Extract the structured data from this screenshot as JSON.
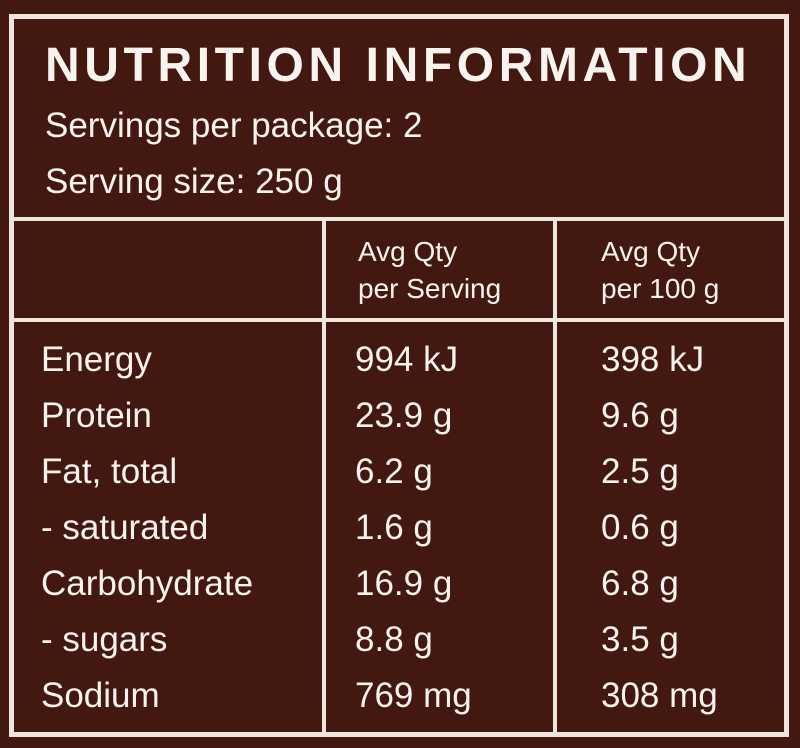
{
  "label": {
    "title": "NUTRITION INFORMATION",
    "servings_per_package": "Servings per package: 2",
    "serving_size": "Serving size: 250 g"
  },
  "columns": {
    "per_serving": {
      "line1": "Avg Qty",
      "line2": "per Serving"
    },
    "per_100g": {
      "line1": "Avg Qty",
      "line2": "per 100 g"
    }
  },
  "rows": [
    {
      "name": "Energy",
      "per_serving": "994 kJ",
      "per_100g": "398 kJ"
    },
    {
      "name": "Protein",
      "per_serving": "23.9 g",
      "per_100g": "9.6 g"
    },
    {
      "name": "Fat, total",
      "per_serving": "6.2 g",
      "per_100g": "2.5 g"
    },
    {
      "name": "- saturated",
      "per_serving": "1.6 g",
      "per_100g": "0.6 g"
    },
    {
      "name": "Carbohydrate",
      "per_serving": "16.9 g",
      "per_100g": "6.8 g"
    },
    {
      "name": "- sugars",
      "per_serving": "8.8 g",
      "per_100g": "3.5 g"
    },
    {
      "name": "Sodium",
      "per_serving": "769 mg",
      "per_100g": "308 mg"
    }
  ],
  "colors": {
    "background": "#431810",
    "border": "#ece6dc",
    "text": "#f7f3ee"
  }
}
